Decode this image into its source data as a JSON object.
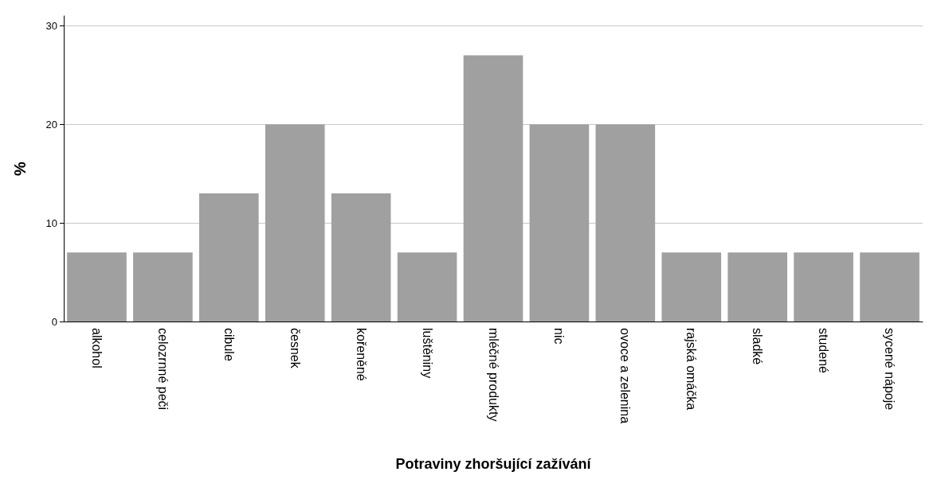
{
  "chart_data": {
    "type": "bar",
    "xlabel": "Potraviny zhoršující zažívání",
    "ylabel": "%",
    "categories": [
      "alkohol",
      "celozrnné peči",
      "cibule",
      "česnek",
      "kořeněné",
      "luštěniny",
      "mléčné produkty",
      "nic",
      "ovoce a zelenina",
      "rajská omáčka",
      "sladké",
      "studené",
      "sycené nápoje"
    ],
    "values": [
      7,
      7,
      13,
      20,
      13,
      7,
      27,
      20,
      20,
      7,
      7,
      7,
      7
    ],
    "color": "#a0a0a0",
    "ylim": [
      0,
      31
    ],
    "yticks": [
      0,
      10,
      20,
      30
    ],
    "grid": "y"
  }
}
